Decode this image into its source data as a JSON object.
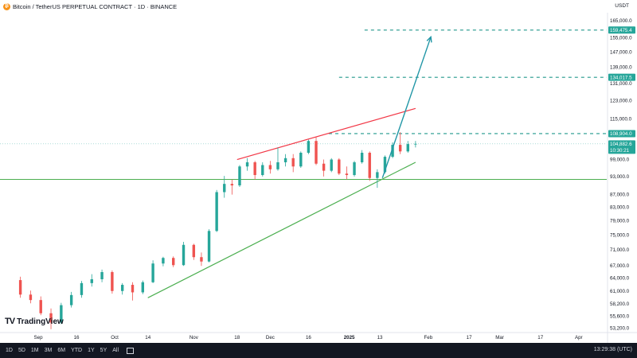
{
  "header": {
    "title": "Bitcoin / TetherUS PERPETUAL CONTRACT · 1D · BINANCE",
    "coin_icon": "bitcoin-icon",
    "unit": "USDT"
  },
  "colors": {
    "up": "#26a69a",
    "down": "#ef5350",
    "support_line": "#4caf50",
    "resistance_line": "#f23645",
    "projection": "#2196a6",
    "target_line": "#22998c",
    "price_tag": "#26a69a"
  },
  "chart_data": {
    "type": "candlestick",
    "y_scale": "log",
    "ylim": [
      52500,
      170000
    ],
    "y_ticks": [
      "165,000.0",
      "155,000.0",
      "147,000.0",
      "139,000.0",
      "131,000.0",
      "123,000.0",
      "115,000.0",
      "99,000.0",
      "93,000.0",
      "87,000.0",
      "83,000.0",
      "79,000.0",
      "75,000.0",
      "71,000.0",
      "67,000.0",
      "64,000.0",
      "61,000.0",
      "58,200.0",
      "55,600.0",
      "53,200.0"
    ],
    "x_ticks": [
      "Sep",
      "16",
      "Oct",
      "14",
      "Nov",
      "18",
      "Dec",
      "16",
      "2025",
      "13",
      "Feb",
      "17",
      "Mar",
      "17",
      "Apr"
    ],
    "x_tick_dates": [
      "2024-09-01",
      "2024-09-16",
      "2024-10-01",
      "2024-10-14",
      "2024-11-01",
      "2024-11-18",
      "2024-12-01",
      "2024-12-16",
      "2025-01-01",
      "2025-01-13",
      "2025-02-01",
      "2025-02-17",
      "2025-03-01",
      "2025-03-17",
      "2025-04-01"
    ],
    "candles": [
      [
        "2024-08-25",
        63500,
        64300,
        59500,
        60200
      ],
      [
        "2024-08-29",
        60200,
        61100,
        58300,
        59000
      ],
      [
        "2024-09-02",
        59000,
        59800,
        55800,
        56200
      ],
      [
        "2024-09-06",
        56200,
        57200,
        53000,
        54300
      ],
      [
        "2024-09-10",
        54300,
        58400,
        54000,
        57900
      ],
      [
        "2024-09-14",
        57900,
        60800,
        57400,
        60100
      ],
      [
        "2024-09-18",
        60100,
        63300,
        59500,
        62800
      ],
      [
        "2024-09-22",
        62800,
        64900,
        62000,
        63700
      ],
      [
        "2024-09-26",
        63700,
        66000,
        63000,
        65400
      ],
      [
        "2024-09-30",
        65400,
        65800,
        60400,
        61000
      ],
      [
        "2024-10-04",
        61000,
        62800,
        60200,
        62400
      ],
      [
        "2024-10-08",
        62400,
        63000,
        58900,
        60700
      ],
      [
        "2024-10-12",
        60700,
        63400,
        60300,
        63000
      ],
      [
        "2024-10-16",
        63000,
        68300,
        62800,
        67500
      ],
      [
        "2024-10-20",
        67500,
        69200,
        66800,
        68900
      ],
      [
        "2024-10-24",
        68900,
        69300,
        66600,
        67100
      ],
      [
        "2024-10-28",
        67100,
        73100,
        66900,
        72300
      ],
      [
        "2024-11-01",
        72300,
        72600,
        68400,
        69100
      ],
      [
        "2024-11-04",
        69100,
        70300,
        66900,
        68000
      ],
      [
        "2024-11-07",
        68000,
        76600,
        67800,
        76100
      ],
      [
        "2024-11-10",
        76100,
        88500,
        75800,
        87800
      ],
      [
        "2024-11-13",
        87800,
        93200,
        86000,
        90500
      ],
      [
        "2024-11-16",
        90500,
        92000,
        87000,
        90000
      ],
      [
        "2024-11-19",
        90000,
        97000,
        89500,
        96500
      ],
      [
        "2024-11-22",
        96500,
        99500,
        95000,
        98000
      ],
      [
        "2024-11-25",
        98000,
        98500,
        92000,
        93500
      ],
      [
        "2024-11-28",
        93500,
        98000,
        93000,
        97000
      ],
      [
        "2024-12-01",
        97000,
        98500,
        94000,
        95500
      ],
      [
        "2024-12-04",
        95500,
        103500,
        95000,
        98000
      ],
      [
        "2024-12-07",
        98000,
        101000,
        96500,
        99500
      ],
      [
        "2024-12-10",
        99500,
        101000,
        94500,
        96500
      ],
      [
        "2024-12-13",
        96500,
        102000,
        96000,
        101500
      ],
      [
        "2024-12-16",
        101500,
        106500,
        101000,
        106000
      ],
      [
        "2024-12-19",
        106000,
        107500,
        97000,
        97500
      ],
      [
        "2024-12-22",
        97500,
        99000,
        93000,
        95000
      ],
      [
        "2024-12-25",
        95000,
        99500,
        94500,
        99000
      ],
      [
        "2024-12-28",
        99000,
        99500,
        93500,
        94000
      ],
      [
        "2024-12-31",
        94000,
        96500,
        92000,
        93500
      ],
      [
        "2025-01-03",
        93500,
        98500,
        93000,
        98000
      ],
      [
        "2025-01-06",
        98000,
        102500,
        97500,
        101500
      ],
      [
        "2025-01-09",
        101500,
        102000,
        91500,
        92500
      ],
      [
        "2025-01-12",
        92500,
        95500,
        89200,
        94500
      ],
      [
        "2025-01-15",
        94500,
        100500,
        94000,
        100000
      ],
      [
        "2025-01-18",
        100000,
        105500,
        99500,
        104500
      ],
      [
        "2025-01-21",
        104500,
        109500,
        101000,
        102000
      ],
      [
        "2025-01-24",
        102000,
        106000,
        101500,
        104800
      ],
      [
        "2025-01-27",
        104800,
        106000,
        103500,
        104882.6
      ]
    ],
    "annotations": {
      "target_1": "159,475.4",
      "target_2": "134,017.5",
      "target_3": "108,904.0",
      "last_price": "104,882.6",
      "countdown": "10:30:21",
      "horizontal_support": 92000
    },
    "drawings": {
      "support_trendline": [
        [
          "2024-10-14",
          59500
        ],
        [
          "2025-01-27",
          98000
        ]
      ],
      "resistance_trendline": [
        [
          "2024-11-18",
          99000
        ],
        [
          "2025-01-27",
          119500
        ]
      ],
      "projection_arrow": [
        [
          "2025-01-14",
          92500
        ],
        [
          "2025-02-02",
          155500
        ]
      ]
    }
  },
  "branding": {
    "logo_mark": "TV",
    "logo_text": "TradingView"
  },
  "footer": {
    "timeframes": [
      "1D",
      "5D",
      "1M",
      "3M",
      "6M",
      "YTD",
      "1Y",
      "5Y",
      "All"
    ],
    "calendar_icon": "calendar-icon",
    "clock": "13:29:38 (UTC)"
  }
}
